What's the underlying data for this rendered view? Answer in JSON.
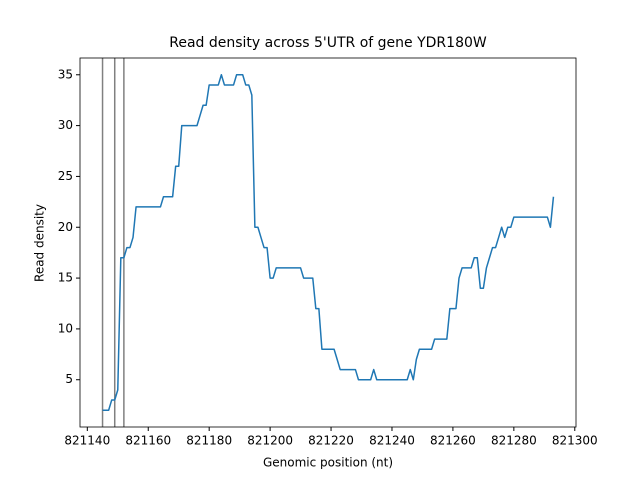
{
  "chart_data": {
    "type": "line",
    "title": "Read density across 5'UTR of gene YDR180W",
    "xlabel": "Genomic position (nt)",
    "ylabel": "Read density",
    "x": [
      821145,
      821146,
      821147,
      821148,
      821149,
      821150,
      821151,
      821152,
      821153,
      821154,
      821155,
      821156,
      821157,
      821158,
      821159,
      821160,
      821161,
      821162,
      821163,
      821164,
      821165,
      821166,
      821167,
      821168,
      821169,
      821170,
      821171,
      821172,
      821173,
      821174,
      821175,
      821176,
      821177,
      821178,
      821179,
      821180,
      821181,
      821182,
      821183,
      821184,
      821185,
      821186,
      821187,
      821188,
      821189,
      821190,
      821191,
      821192,
      821193,
      821194,
      821195,
      821196,
      821197,
      821198,
      821199,
      821200,
      821201,
      821202,
      821203,
      821204,
      821205,
      821206,
      821207,
      821208,
      821209,
      821210,
      821211,
      821212,
      821213,
      821214,
      821215,
      821216,
      821217,
      821218,
      821219,
      821220,
      821221,
      821222,
      821223,
      821224,
      821225,
      821226,
      821227,
      821228,
      821229,
      821230,
      821231,
      821232,
      821233,
      821234,
      821235,
      821236,
      821237,
      821238,
      821239,
      821240,
      821241,
      821242,
      821243,
      821244,
      821245,
      821246,
      821247,
      821248,
      821249,
      821250,
      821251,
      821252,
      821253,
      821254,
      821255,
      821256,
      821257,
      821258,
      821259,
      821260,
      821261,
      821262,
      821263,
      821264,
      821265,
      821266,
      821267,
      821268,
      821269,
      821270,
      821271,
      821272,
      821273,
      821274,
      821275,
      821276,
      821277,
      821278,
      821279,
      821280,
      821281,
      821282,
      821283,
      821284,
      821285,
      821286,
      821287,
      821288,
      821289,
      821290,
      821291,
      821292,
      821293
    ],
    "series": [
      {
        "color": "#1f77b4",
        "values": [
          2,
          2,
          2,
          3,
          3,
          4,
          17,
          17,
          18,
          18,
          19,
          22,
          22,
          22,
          22,
          22,
          22,
          22,
          22,
          22,
          23,
          23,
          23,
          23,
          26,
          26,
          30,
          30,
          30,
          30,
          30,
          30,
          31,
          32,
          32,
          34,
          34,
          34,
          34,
          35,
          34,
          34,
          34,
          34,
          35,
          35,
          35,
          34,
          34,
          33,
          20,
          20,
          19,
          18,
          18,
          15,
          15,
          16,
          16,
          16,
          16,
          16,
          16,
          16,
          16,
          16,
          15,
          15,
          15,
          15,
          12,
          12,
          8,
          8,
          8,
          8,
          8,
          7,
          6,
          6,
          6,
          6,
          6,
          6,
          5,
          5,
          5,
          5,
          5,
          6,
          5,
          5,
          5,
          5,
          5,
          5,
          5,
          5,
          5,
          5,
          5,
          6,
          5,
          7,
          8,
          8,
          8,
          8,
          8,
          9,
          9,
          9,
          9,
          9,
          12,
          12,
          12,
          15,
          16,
          16,
          16,
          16,
          17,
          17,
          14,
          14,
          16,
          17,
          18,
          18,
          19,
          20,
          19,
          20,
          20,
          21,
          21,
          21,
          21,
          21,
          21,
          21,
          21,
          21,
          21,
          21,
          21,
          20,
          23
        ]
      }
    ],
    "vlines": [
      821145,
      821149,
      821152
    ],
    "vline_color": "#808080",
    "xlim": [
      821137.6,
      821300.4
    ],
    "ylim": [
      0.35,
      36.65
    ],
    "xticks": [
      821140,
      821160,
      821180,
      821200,
      821220,
      821240,
      821260,
      821280,
      821300
    ],
    "yticks": [
      5,
      10,
      15,
      20,
      25,
      30,
      35
    ]
  }
}
